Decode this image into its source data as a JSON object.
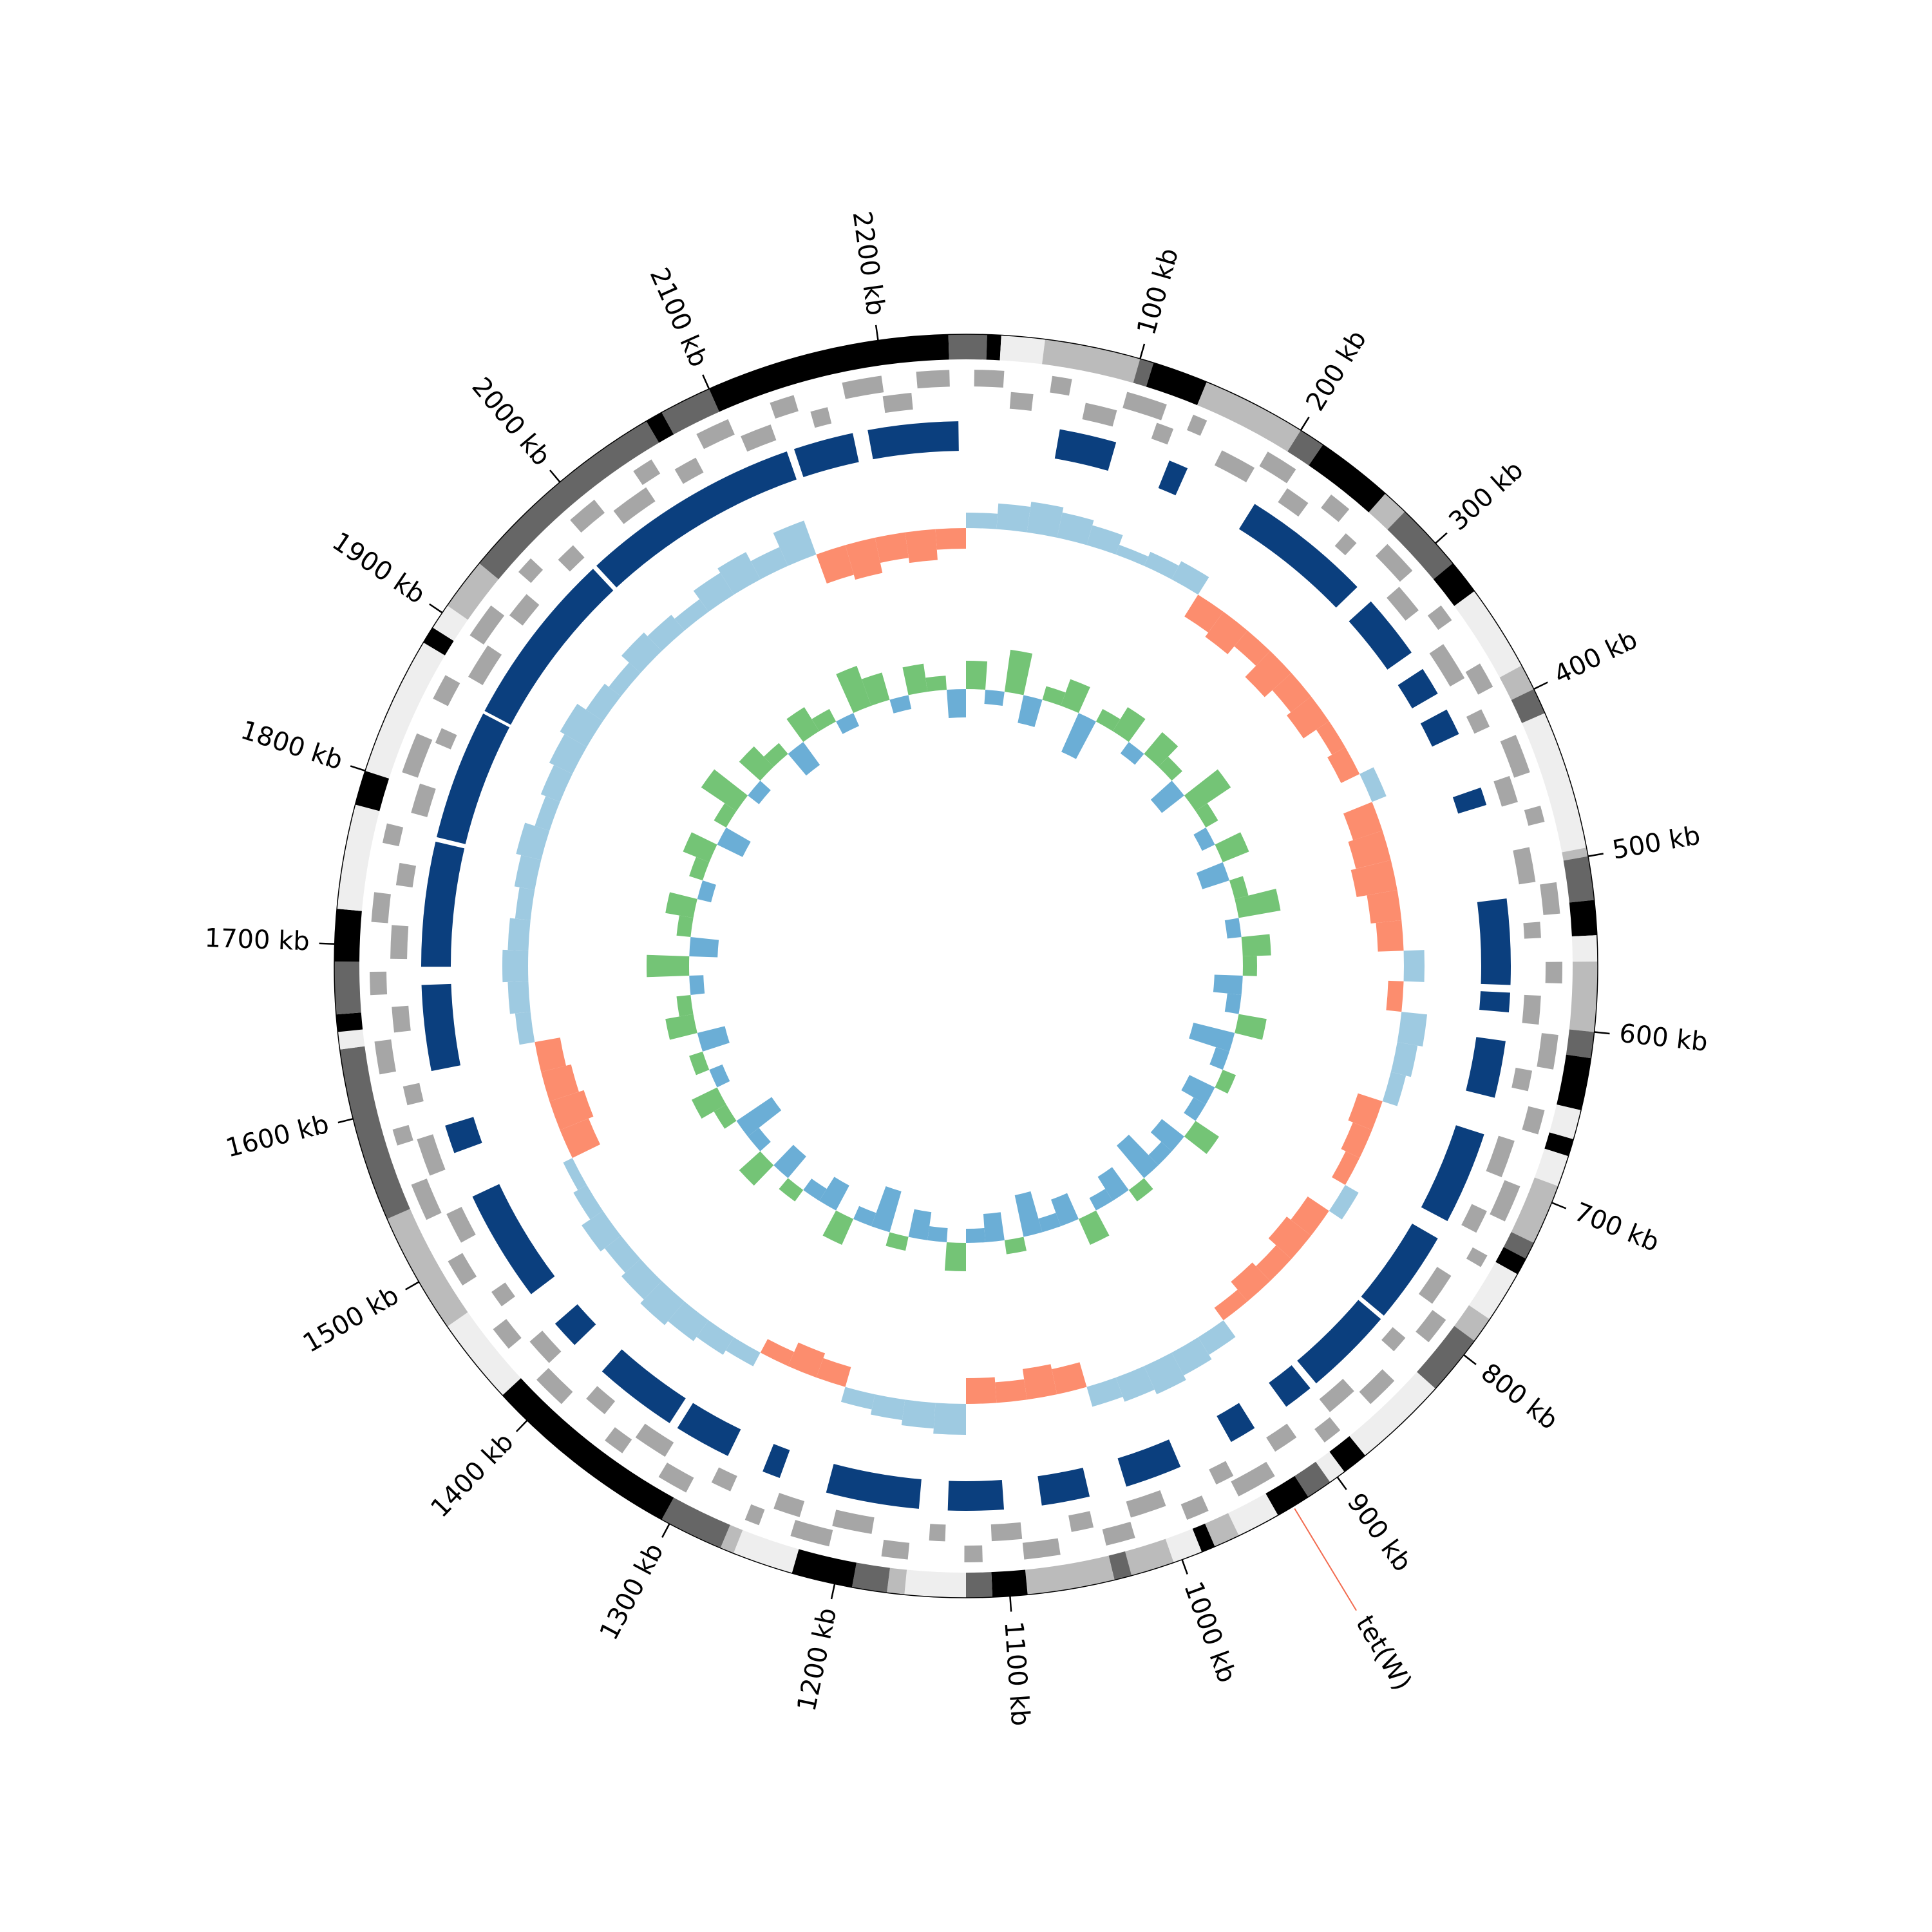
{
  "chart_data": {
    "type": "circular",
    "xlim": [
      0,
      2250
    ],
    "xticks": [
      {
        "value": 100,
        "label": "100 kb"
      },
      {
        "value": 200,
        "label": "200 kb"
      },
      {
        "value": 300,
        "label": "300 kb"
      },
      {
        "value": 400,
        "label": "400 kb"
      },
      {
        "value": 500,
        "label": "500 kb"
      },
      {
        "value": 600,
        "label": "600 kb"
      },
      {
        "value": 700,
        "label": "700 kb"
      },
      {
        "value": 800,
        "label": "800 kb"
      },
      {
        "value": 900,
        "label": "900 kb"
      },
      {
        "value": 1000,
        "label": "1000 kb"
      },
      {
        "value": 1100,
        "label": "1100 kb"
      },
      {
        "value": 1200,
        "label": "1200 kb"
      },
      {
        "value": 1300,
        "label": "1300 kb"
      },
      {
        "value": 1400,
        "label": "1400 kb"
      },
      {
        "value": 1500,
        "label": "1500 kb"
      },
      {
        "value": 1600,
        "label": "1600 kb"
      },
      {
        "value": 1700,
        "label": "1700 kb"
      },
      {
        "value": 1800,
        "label": "1800 kb"
      },
      {
        "value": 1900,
        "label": "1900 kb"
      },
      {
        "value": 2000,
        "label": "2000 kb"
      },
      {
        "value": 2100,
        "label": "2100 kb"
      },
      {
        "value": 2200,
        "label": "2200 kb"
      }
    ],
    "bands": {
      "ends": [
        12,
        20,
        45,
        100,
        108,
        140,
        200,
        215,
        260,
        275,
        315,
        335,
        385,
        400,
        415,
        495,
        500,
        525,
        545,
        560,
        600,
        615,
        645,
        662,
        672,
        690,
        725,
        735,
        745,
        775,
        790,
        825,
        880,
        895,
        905,
        920,
        940,
        965,
        980,
        988,
        1005,
        1030,
        1040,
        1090,
        1110,
        1125,
        1160,
        1170,
        1190,
        1225,
        1260,
        1268,
        1305,
        1420,
        1470,
        1540,
        1640,
        1650,
        1660,
        1690,
        1720,
        1780,
        1800,
        1880,
        1890,
        1905,
        1935,
        2060,
        2070,
        2100,
        2240,
        2250
      ],
      "colors": [
        "#666",
        "#000",
        "#eee",
        "#bbb",
        "#666",
        "#000",
        "#bbb",
        "#666",
        "#000",
        "#bbb",
        "#666",
        "#000",
        "#eee",
        "#bbb",
        "#666",
        "#eee",
        "#bbb",
        "#666",
        "#000",
        "#eee",
        "#bbb",
        "#666",
        "#000",
        "#eee",
        "#000",
        "#eee",
        "#bbb",
        "#666",
        "#000",
        "#eee",
        "#bbb",
        "#666",
        "#eee",
        "#000",
        "#eee",
        "#666",
        "#000",
        "#eee",
        "#bbb",
        "#000",
        "#eee",
        "#bbb",
        "#666",
        "#bbb",
        "#000",
        "#666",
        "#eee",
        "#bbb",
        "#666",
        "#000",
        "#eee",
        "#bbb",
        "#666",
        "#000",
        "#eee",
        "#bbb",
        "#666",
        "#eee",
        "#000",
        "#666",
        "#000",
        "#eee",
        "#000",
        "#eee",
        "#000",
        "#eee",
        "#bbb",
        "#666",
        "#000",
        "#666",
        "#000",
        "#666"
      ]
    },
    "genes_forward": {
      "color": "#a6a6a6",
      "starts": [
        5,
        52,
        98,
        140,
        190,
        236,
        281,
        330,
        372,
        420,
        465,
        512,
        560,
        604,
        650,
        698,
        744,
        790,
        838,
        882,
        930,
        975,
        1022,
        1068,
        1115,
        1160,
        1208,
        1252,
        1300,
        1345,
        1392,
        1438,
        1485,
        1530,
        1578,
        1622,
        1670,
        1714,
        1762,
        1806,
        1854,
        1898,
        1946,
        1990,
        2038,
        2082,
        2130,
        2175,
        2220
      ],
      "ends": [
        23,
        64,
        123,
        149,
        210,
        250,
        303,
        341,
        388,
        444,
        475,
        531,
        573,
        625,
        665,
        721,
        752,
        807,
        858,
        894,
        955,
        989,
        1040,
        1090,
        1126,
        1176,
        1232,
        1261,
        1319,
        1358,
        1413,
        1453,
        1502,
        1553,
        1588,
        1642,
        1684,
        1732,
        1774,
        1831,
        1870,
        1920,
        1957,
        2009,
        2051,
        2103,
        2145,
        2199,
        2240
      ]
    },
    "genes_reverse": {
      "color": "#a6a6a6",
      "starts": [
        28,
        75,
        121,
        165,
        212,
        258,
        305,
        350,
        397,
        442,
        488,
        535,
        581,
        628,
        673,
        720,
        766,
        814,
        860,
        906,
        952,
        998,
        1045,
        1090,
        1138,
        1184,
        1230,
        1276,
        1322,
        1368,
        1415,
        1461,
        1508,
        1554,
        1600,
        1646,
        1692,
        1738,
        1784,
        1830,
        1876,
        1922,
        1968,
        2014,
        2060,
        2106,
        2152,
        2198
      ],
      "ends": [
        42,
        95,
        132,
        188,
        228,
        267,
        324,
        375,
        409,
        459,
        510,
        545,
        599,
        641,
        697,
        735,
        787,
        825,
        880,
        922,
        964,
        1021,
        1059,
        1109,
        1148,
        1209,
        1247,
        1289,
        1344,
        1383,
        1433,
        1472,
        1528,
        1578,
        1612,
        1662,
        1713,
        1752,
        1803,
        1840,
        1899,
        1939,
        1981,
        2039,
        2075,
        2126,
        2163,
        2216
      ]
    },
    "hits": {
      "color": "#0b3f7e",
      "starts": [
        62,
        137,
        200,
        300,
        356,
        387,
        443,
        518,
        580,
        612,
        675,
        750,
        815,
        880,
        925,
        980,
        1043,
        1100,
        1156,
        1250,
        1287,
        1331,
        1412,
        1456,
        1562,
        1618,
        1687,
        1773,
        1862,
        1983,
        2135,
        2185
      ],
      "ends": [
        100,
        150,
        287,
        343,
        375,
        405,
        455,
        575,
        593,
        650,
        737,
        812,
        875,
        900,
        943,
        1018,
        1075,
        1137,
        1218,
        1262,
        1325,
        1387,
        1431,
        1531,
        1581,
        1675,
        1770,
        1860,
        1980,
        2130,
        2175,
        2245
      ]
    },
    "gc_content": {
      "positive_color": "#9ecae1",
      "negative_color": "#fc8d6e",
      "lim": [
        -8,
        8
      ],
      "values": [
        3,
        5,
        6,
        5,
        4,
        2,
        3,
        4,
        -5,
        -6,
        -4,
        -7,
        -5,
        -6,
        -3,
        -4,
        3,
        -6,
        -7,
        -8,
        -6,
        -5,
        4,
        -3,
        5,
        4,
        3,
        -5,
        -4,
        -3,
        3,
        -5,
        -6,
        -4,
        -5,
        -3,
        4,
        5,
        6,
        5,
        4,
        -5,
        -6,
        -4,
        -5,
        6,
        5,
        4,
        3,
        -4,
        -5,
        -3,
        3,
        4,
        5,
        6,
        5,
        4,
        5,
        3,
        2,
        -6,
        -7,
        -6,
        -5,
        3,
        4,
        5,
        4,
        3,
        4,
        5,
        3,
        4,
        5,
        6,
        4,
        3,
        5,
        4,
        3,
        5,
        6,
        4,
        7,
        -6,
        -7,
        -5,
        -6,
        -4
      ]
    },
    "gc_skew": {
      "positive_color": "#74c476",
      "negative_color": "#6baed6",
      "lim": [
        -4,
        4
      ],
      "values": [
        2,
        -1,
        3,
        -2,
        1,
        2,
        -3,
        1,
        2,
        -1,
        2,
        1,
        -2,
        3,
        1,
        -1,
        2,
        -2,
        1,
        3,
        -1,
        2,
        1,
        -2,
        -1,
        2,
        -3,
        -1,
        1,
        -2,
        -1,
        2,
        -2,
        -1,
        -3,
        1,
        -2,
        -1,
        2,
        -2,
        -1,
        -3,
        1,
        -2,
        -1,
        2,
        -1,
        -2,
        1,
        -3,
        -1,
        2,
        -2,
        -1,
        1,
        -2,
        2,
        -1,
        -3,
        1,
        2,
        -1,
        1,
        -2,
        2,
        1,
        -1,
        3,
        -2,
        1,
        2,
        -1,
        1,
        2,
        -2,
        1,
        3,
        -1,
        2,
        1,
        -2,
        2,
        1,
        -1,
        3,
        2,
        -1,
        2,
        1,
        -2
      ]
    },
    "annotations": [
      {
        "label": "tet(W)",
        "position": 930,
        "line_color": "#f26b4f",
        "text_color": "#1f6fb4"
      }
    ]
  }
}
